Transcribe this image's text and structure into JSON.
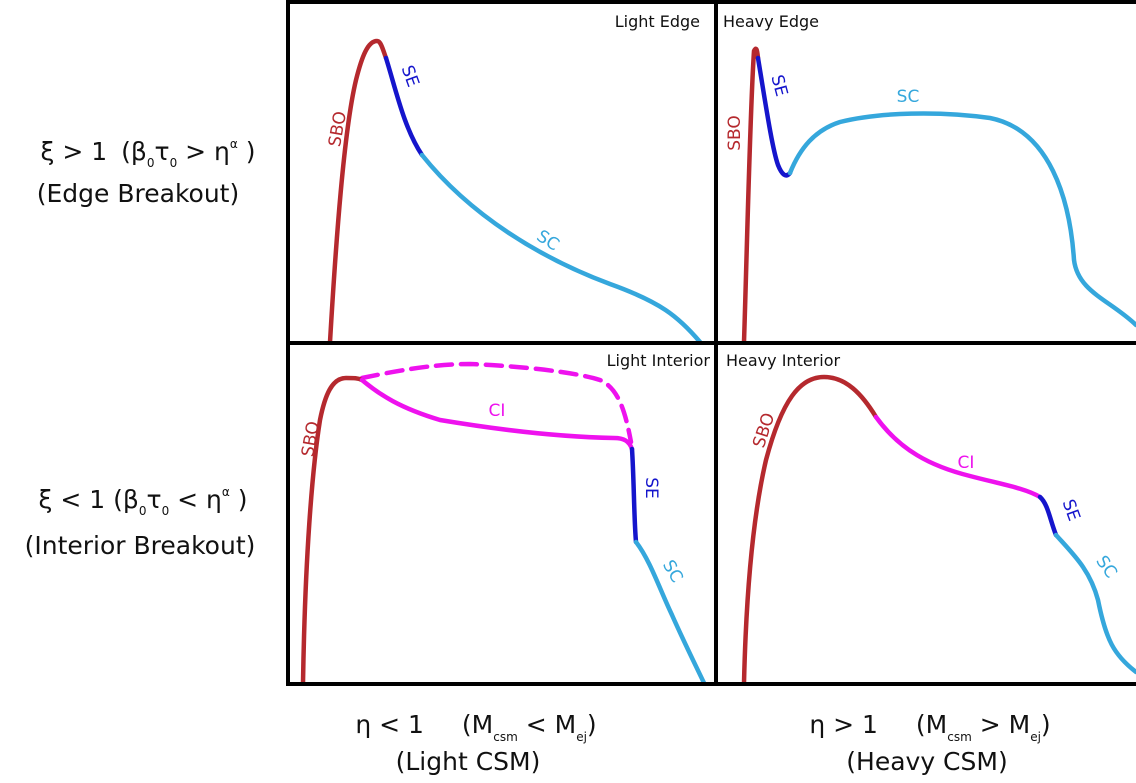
{
  "colors": {
    "sbo": "#b5292e",
    "se": "#1515cc",
    "sc": "#35a7dc",
    "ci": "#ee12ee",
    "frame": "#000000"
  },
  "panels": {
    "light_edge": {
      "title": "Light Edge",
      "labels": {
        "sbo": "SBO",
        "se": "SE",
        "sc": "SC"
      }
    },
    "heavy_edge": {
      "title": "Heavy Edge",
      "labels": {
        "sbo": "SBO",
        "se": "SE",
        "sc": "SC"
      }
    },
    "light_interior": {
      "title": "Light Interior",
      "labels": {
        "sbo": "SBO",
        "ci": "CI",
        "se": "SE",
        "sc": "SC"
      }
    },
    "heavy_interior": {
      "title": "Heavy Interior",
      "labels": {
        "sbo": "SBO",
        "ci": "CI",
        "se": "SE",
        "sc": "SC"
      }
    }
  },
  "rows": {
    "top": {
      "xi": "ξ > 1",
      "cond_open": "(β",
      "sub0": "0",
      "tau": "τ",
      "sub1": "0",
      "cond_mid": " > η",
      "sup": "α",
      "cond_close": " )",
      "name": "(Edge Breakout)"
    },
    "bottom": {
      "xi": "ξ < 1",
      "cond_open": "(β",
      "sub0": "0",
      "tau": "τ",
      "sub1": "0",
      "cond_mid": " < η",
      "sup": "α",
      "cond_close": " )",
      "name": "(Interior Breakout)"
    }
  },
  "columns": {
    "left": {
      "eta": "η < 1",
      "m_open": "(M",
      "m_sub1": "csm",
      "m_mid": " < M",
      "m_sub2": "ej",
      "m_close": ")",
      "name": "(Light CSM)"
    },
    "right": {
      "eta": "η > 1",
      "m_open": "(M",
      "m_sub1": "csm",
      "m_mid": " > M",
      "m_sub2": "ej",
      "m_close": ")",
      "name": "(Heavy CSM)"
    }
  }
}
